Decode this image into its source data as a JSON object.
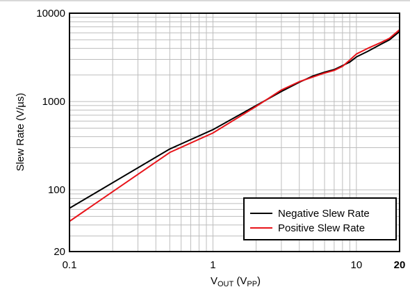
{
  "chart_data": {
    "type": "line",
    "title": "",
    "xlabel": {
      "main": "V",
      "sub": "OUT",
      "unit_open": " (V",
      "unit_sub": "PP",
      "unit_close": ")"
    },
    "ylabel": "Slew Rate (V/µs)",
    "x_scale": "log",
    "y_scale": "log",
    "xlim": [
      0.1,
      20
    ],
    "ylim": [
      20,
      10000
    ],
    "grid": true,
    "legend_position": "bottom-right",
    "x_ticks": [
      {
        "value": 0.1,
        "label": "0.1",
        "bold": false
      },
      {
        "value": 1,
        "label": "1",
        "bold": false
      },
      {
        "value": 10,
        "label": "10",
        "bold": false
      },
      {
        "value": 20,
        "label": "20",
        "bold": true
      }
    ],
    "y_ticks": [
      {
        "value": 20,
        "label": "20"
      },
      {
        "value": 100,
        "label": "100"
      },
      {
        "value": 1000,
        "label": "1000"
      },
      {
        "value": 10000,
        "label": "10000"
      }
    ],
    "series": [
      {
        "name": "Negative Slew Rate",
        "color": "#000000",
        "points": [
          [
            0.1,
            62
          ],
          [
            0.5,
            290
          ],
          [
            1,
            480
          ],
          [
            2,
            900
          ],
          [
            3,
            1300
          ],
          [
            4,
            1650
          ],
          [
            5,
            1950
          ],
          [
            6,
            2150
          ],
          [
            7,
            2300
          ],
          [
            8,
            2550
          ],
          [
            9,
            2800
          ],
          [
            10,
            3200
          ],
          [
            12,
            3700
          ],
          [
            15,
            4500
          ],
          [
            17,
            5000
          ],
          [
            20,
            6200
          ]
        ]
      },
      {
        "name": "Positive Slew Rate",
        "color": "#e8141a",
        "points": [
          [
            0.1,
            44
          ],
          [
            0.5,
            265
          ],
          [
            1,
            440
          ],
          [
            2,
            880
          ],
          [
            3,
            1350
          ],
          [
            4,
            1680
          ],
          [
            5,
            1900
          ],
          [
            6,
            2100
          ],
          [
            7,
            2250
          ],
          [
            8,
            2500
          ],
          [
            9,
            2950
          ],
          [
            10,
            3450
          ],
          [
            12,
            4000
          ],
          [
            15,
            4700
          ],
          [
            17,
            5200
          ],
          [
            20,
            6500
          ]
        ]
      }
    ]
  }
}
